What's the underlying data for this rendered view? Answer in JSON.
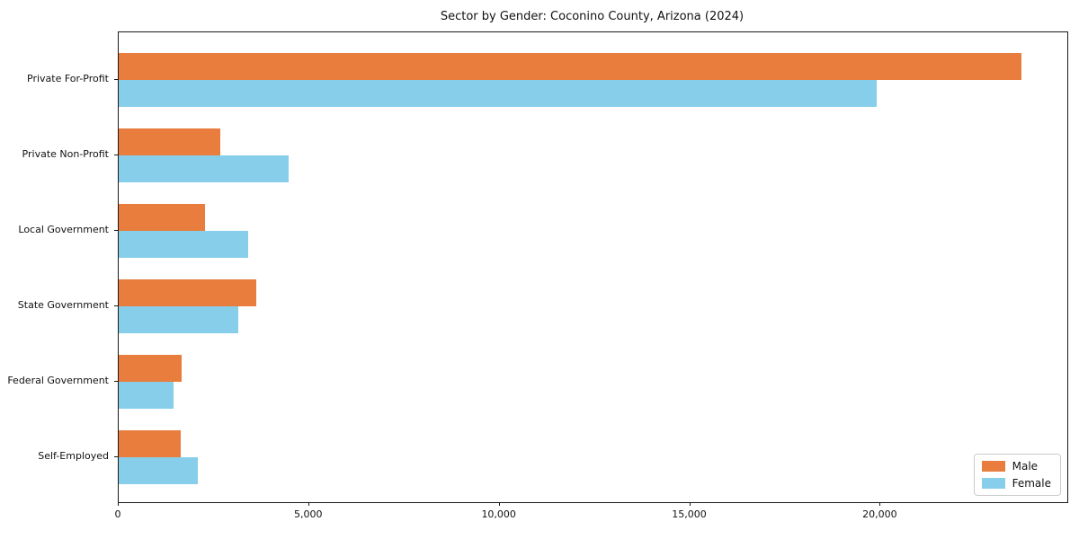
{
  "chart_data": {
    "type": "bar",
    "orientation": "horizontal",
    "title": "Sector by Gender: Coconino County, Arizona (2024)",
    "xlabel": "",
    "ylabel": "",
    "categories": [
      "Private For-Profit",
      "Private Non-Profit",
      "Local Government",
      "State Government",
      "Federal Government",
      "Self-Employed"
    ],
    "series": [
      {
        "name": "Male",
        "color": "#e87d3e",
        "values": [
          23700,
          2670,
          2270,
          3610,
          1650,
          1630
        ]
      },
      {
        "name": "Female",
        "color": "#87ceeb",
        "values": [
          19900,
          4460,
          3400,
          3140,
          1440,
          2080
        ]
      }
    ],
    "xlim": [
      0,
      24900
    ],
    "xticks": [
      {
        "value": 0,
        "label": "0"
      },
      {
        "value": 5000,
        "label": "5,000"
      },
      {
        "value": 10000,
        "label": "10,000"
      },
      {
        "value": 15000,
        "label": "15,000"
      },
      {
        "value": 20000,
        "label": "20,000"
      }
    ],
    "grid": false,
    "legend_position": "lower right"
  }
}
